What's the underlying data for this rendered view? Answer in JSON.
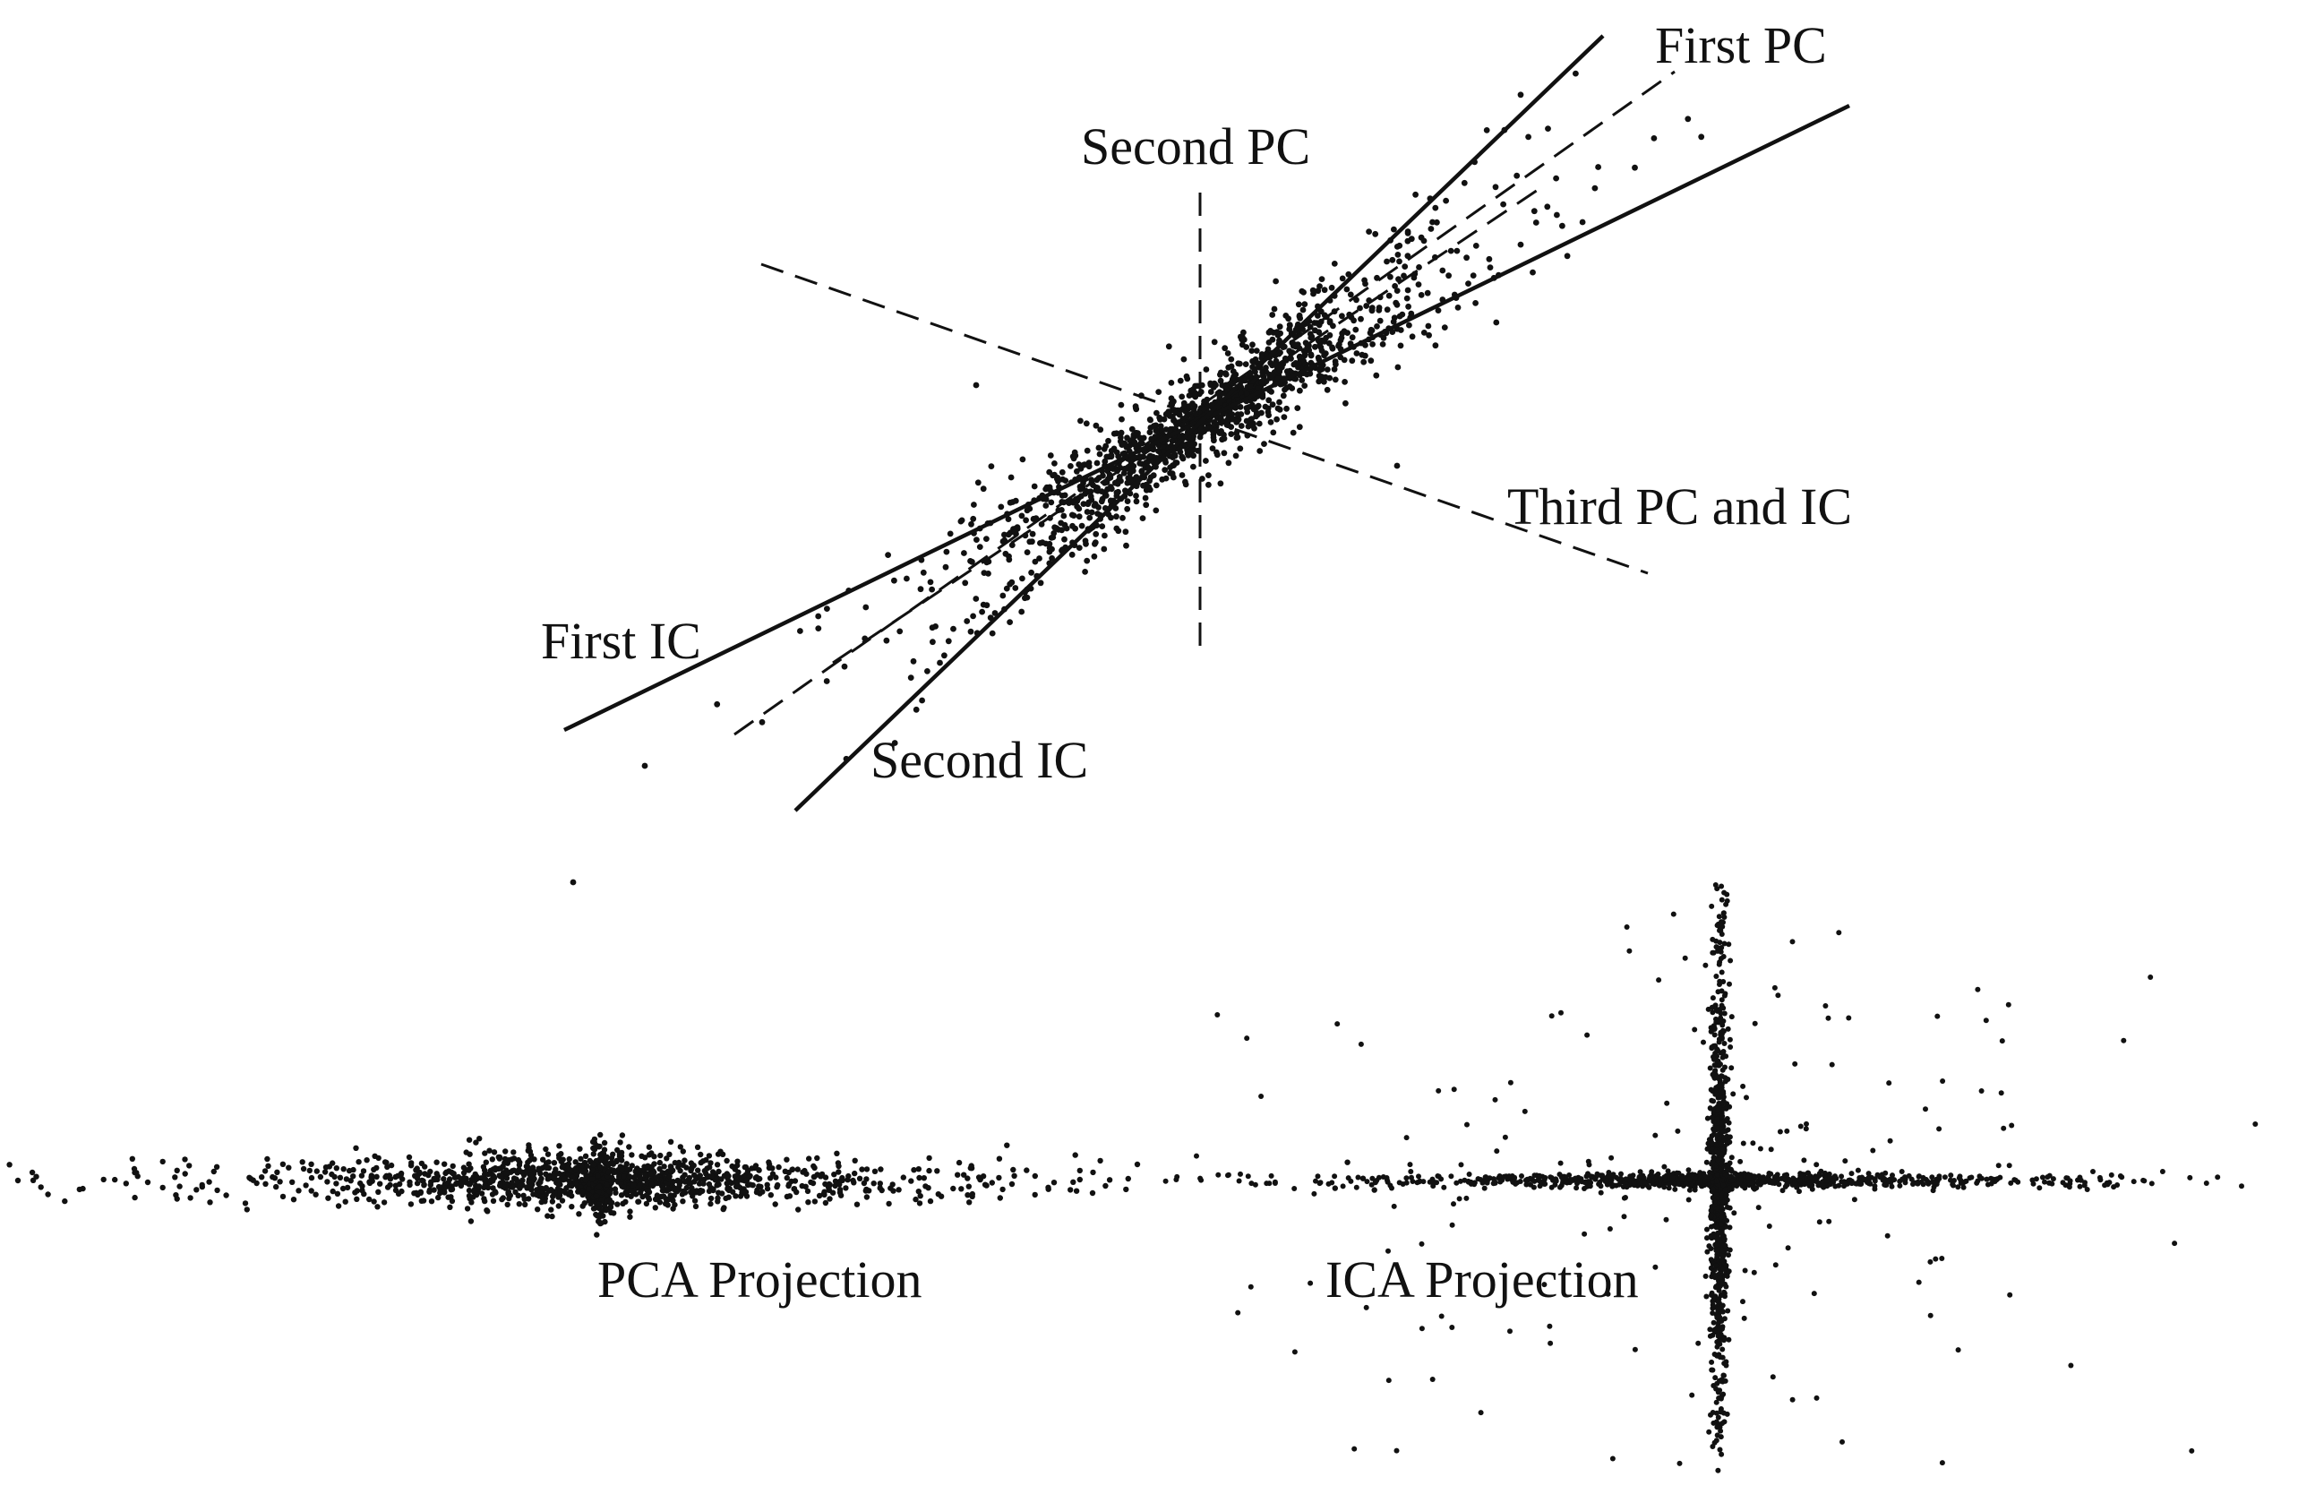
{
  "labels": {
    "first_pc": "First PC",
    "second_pc": "Second PC",
    "third_pc_ic": "Third PC and IC",
    "first_ic": "First IC",
    "second_ic": "Second IC",
    "pca_projection": "PCA Projection",
    "ica_projection": "ICA Projection"
  },
  "axes": [
    {
      "name": "first-pc-axis",
      "style": "dashed"
    },
    {
      "name": "second-pc-axis",
      "style": "dashed"
    },
    {
      "name": "third-pc-ic-axis",
      "style": "dashed"
    },
    {
      "name": "first-ic-axis",
      "style": "solid"
    },
    {
      "name": "second-ic-axis",
      "style": "solid"
    }
  ],
  "colors": {
    "ink": "#111111",
    "background": "#ffffff"
  }
}
